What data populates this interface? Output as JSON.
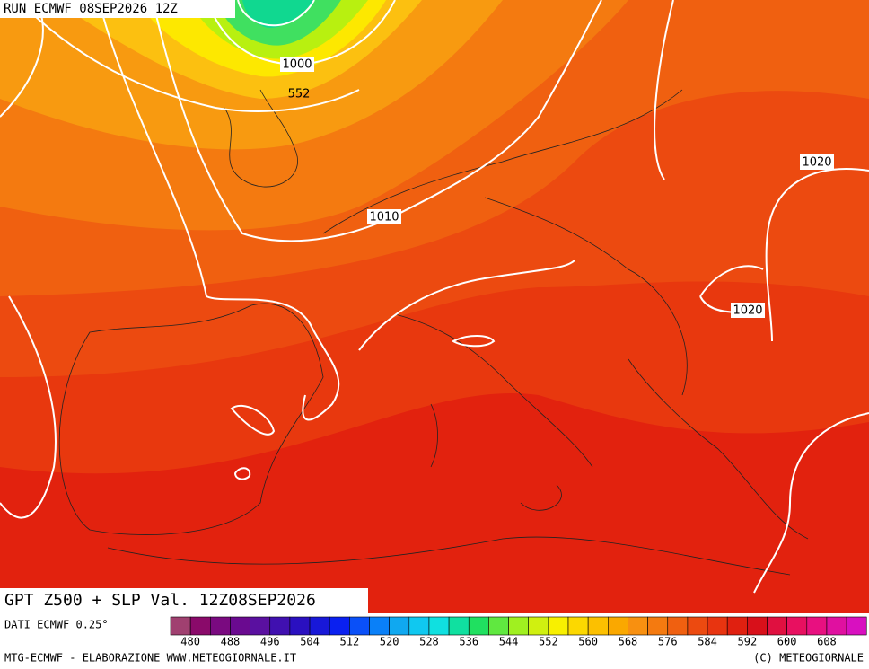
{
  "header": "RUN ECMWF 08SEP2026 12Z",
  "isolines": [
    "1000",
    "552",
    "1010",
    "1020",
    "1020"
  ],
  "title": "GPT Z500 + SLP Val. 12Z08SEP2026",
  "source": "DATI ECMWF 0.25°",
  "scale": {
    "labels": [
      480,
      488,
      496,
      504,
      512,
      520,
      528,
      536,
      544,
      552,
      560,
      568,
      576,
      584,
      592,
      600,
      608
    ]
  },
  "footer_left": "MTG-ECMWF - ELABORAZIONE WWW.METEOGIORNALE.IT",
  "footer_right": "(C) METEOGIORNALE"
}
